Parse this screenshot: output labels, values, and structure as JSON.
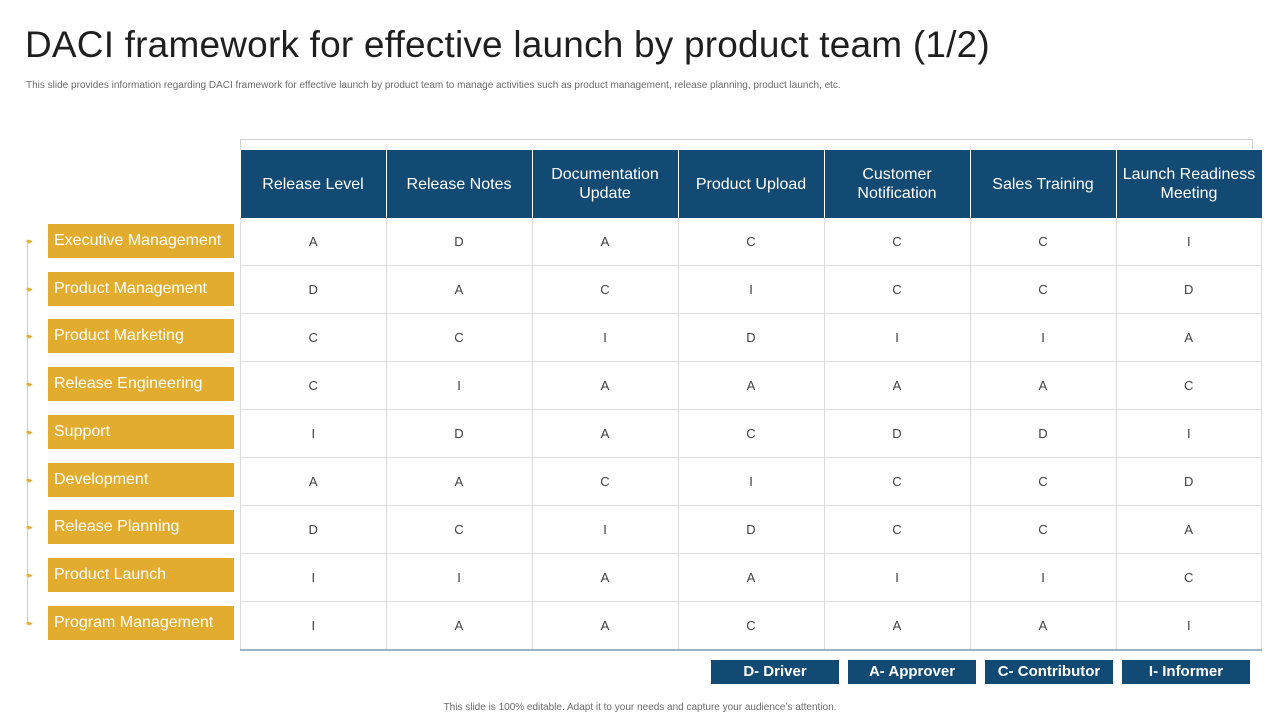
{
  "title": "DACI framework for effective launch by product team (1/2)",
  "subtitle": "This slide provides information regarding DACI framework for effective launch by product team to manage activities such as product management, release planning, product launch, etc.",
  "colors": {
    "header": "#124a73",
    "role": "#e2ad2f",
    "legend": "#124a73"
  },
  "columns": [
    "Release Level",
    "Release Notes",
    "Documentation Update",
    "Product Upload",
    "Customer Notification",
    "Sales Training",
    "Launch Readiness Meeting"
  ],
  "roles": [
    "Executive Management",
    "Product Management",
    "Product Marketing",
    "Release Engineering",
    "Support",
    "Development",
    "Release Planning",
    "Product Launch",
    "Program Management"
  ],
  "matrix": [
    [
      "A",
      "D",
      "A",
      "C",
      "C",
      "C",
      "I"
    ],
    [
      "D",
      "A",
      "C",
      "I",
      "C",
      "C",
      "D"
    ],
    [
      "C",
      "C",
      "I",
      "D",
      "I",
      "I",
      "A"
    ],
    [
      "C",
      "I",
      "A",
      "A",
      "A",
      "A",
      "C"
    ],
    [
      "I",
      "D",
      "A",
      "C",
      "D",
      "D",
      "I"
    ],
    [
      "A",
      "A",
      "C",
      "I",
      "C",
      "C",
      "D"
    ],
    [
      "D",
      "C",
      "I",
      "D",
      "C",
      "C",
      "A"
    ],
    [
      "I",
      "I",
      "A",
      "A",
      "I",
      "I",
      "C"
    ],
    [
      "I",
      "A",
      "A",
      "C",
      "A",
      "A",
      "I"
    ]
  ],
  "legend": [
    "D- Driver",
    "A- Approver",
    "C- Contributor",
    "I- Informer"
  ],
  "footer": "This slide is 100% editable. Adapt it to your needs and capture your audience’s attention."
}
